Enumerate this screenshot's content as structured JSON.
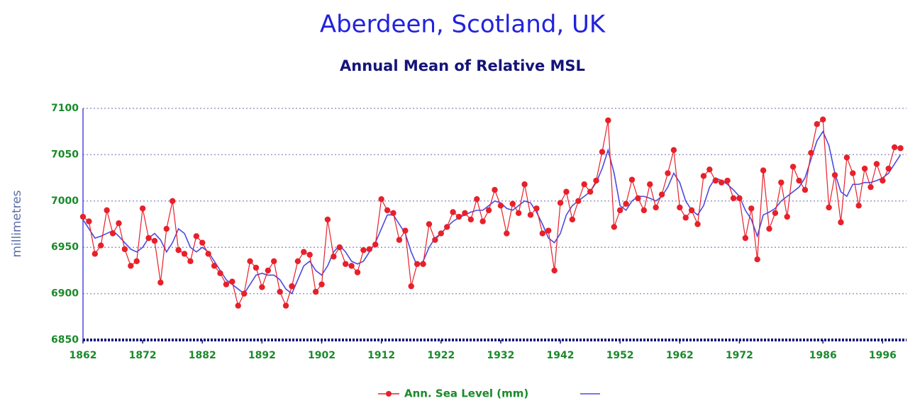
{
  "chart_data": {
    "type": "line",
    "title": "Aberdeen, Scotland, UK",
    "subtitle": "Annual Mean of Relative MSL",
    "y_label": "millimetres",
    "x": [
      1862,
      1863,
      1864,
      1865,
      1866,
      1867,
      1868,
      1869,
      1870,
      1871,
      1872,
      1873,
      1874,
      1875,
      1876,
      1877,
      1878,
      1879,
      1880,
      1881,
      1882,
      1883,
      1884,
      1885,
      1886,
      1887,
      1888,
      1889,
      1890,
      1891,
      1892,
      1893,
      1894,
      1895,
      1896,
      1897,
      1898,
      1899,
      1900,
      1901,
      1902,
      1903,
      1904,
      1905,
      1906,
      1907,
      1908,
      1909,
      1910,
      1911,
      1912,
      1913,
      1914,
      1915,
      1916,
      1917,
      1918,
      1919,
      1920,
      1921,
      1922,
      1923,
      1924,
      1925,
      1926,
      1927,
      1928,
      1929,
      1930,
      1931,
      1932,
      1933,
      1934,
      1935,
      1936,
      1937,
      1938,
      1939,
      1940,
      1941,
      1942,
      1943,
      1944,
      1945,
      1946,
      1947,
      1948,
      1949,
      1950,
      1951,
      1952,
      1953,
      1954,
      1955,
      1956,
      1957,
      1958,
      1959,
      1960,
      1961,
      1962,
      1963,
      1964,
      1965,
      1966,
      1967,
      1968,
      1969,
      1970,
      1971,
      1972,
      1973,
      1974,
      1975,
      1976,
      1977,
      1978,
      1979,
      1980,
      1981,
      1982,
      1983,
      1984,
      1985,
      1986,
      1987,
      1988,
      1989,
      1990,
      1991,
      1992,
      1993,
      1994,
      1995,
      1996,
      1997,
      1998,
      1999
    ],
    "series": [
      {
        "name": "Ann. Sea Level (mm)",
        "color": "#e8202a",
        "values": [
          6983,
          6978,
          6943,
          6952,
          6990,
          6965,
          6976,
          6948,
          6930,
          6935,
          6992,
          6960,
          6957,
          6912,
          6970,
          7000,
          6947,
          6943,
          6935,
          6962,
          6955,
          6943,
          6930,
          6922,
          6910,
          6913,
          6887,
          6900,
          6935,
          6928,
          6907,
          6925,
          6935,
          6902,
          6887,
          6908,
          6935,
          6945,
          6942,
          6902,
          6910,
          6980,
          6940,
          6950,
          6932,
          6930,
          6923,
          6947,
          6948,
          6953,
          7002,
          6990,
          6987,
          6958,
          6968,
          6908,
          6932,
          6932,
          6975,
          6958,
          6965,
          6972,
          6988,
          6983,
          6987,
          6980,
          7002,
          6978,
          6990,
          7012,
          6995,
          6965,
          6997,
          6987,
          7018,
          6985,
          6992,
          6965,
          6968,
          6925,
          6998,
          7010,
          6980,
          7000,
          7018,
          7010,
          7022,
          7053,
          7087,
          6972,
          6990,
          6997,
          7023,
          7003,
          6990,
          7018,
          6993,
          7007,
          7030,
          7055,
          6993,
          6982,
          6990,
          6975,
          7027,
          7034,
          7022,
          7020,
          7022,
          7003,
          7003,
          6960,
          6992,
          6937,
          7033,
          6970,
          6987,
          7020,
          6983,
          7037,
          7022,
          7012,
          7052,
          7083,
          7088,
          6993,
          7028,
          6977,
          7047,
          7030,
          6995,
          7035,
          7015,
          7040,
          7022,
          7035,
          7058,
          7057
        ]
      },
      {
        "color": "#4a4ae0",
        "values": [
          6980,
          6970,
          6960,
          6962,
          6965,
          6968,
          6962,
          6955,
          6948,
          6945,
          6950,
          6960,
          6965,
          6958,
          6945,
          6955,
          6970,
          6965,
          6950,
          6945,
          6950,
          6945,
          6935,
          6925,
          6915,
          6910,
          6905,
          6900,
          6910,
          6920,
          6922,
          6920,
          6920,
          6915,
          6905,
          6900,
          6915,
          6930,
          6935,
          6925,
          6920,
          6930,
          6945,
          6952,
          6945,
          6935,
          6932,
          6935,
          6945,
          6955,
          6970,
          6985,
          6985,
          6975,
          6965,
          6945,
          6930,
          6935,
          6950,
          6960,
          6965,
          6972,
          6978,
          6982,
          6985,
          6988,
          6990,
          6990,
          6995,
          7000,
          6998,
          6992,
          6990,
          6995,
          7000,
          6998,
          6988,
          6975,
          6960,
          6955,
          6965,
          6985,
          6995,
          7000,
          7005,
          7010,
          7020,
          7035,
          7055,
          7030,
          6995,
          6990,
          7000,
          7005,
          7005,
          7003,
          7000,
          7005,
          7015,
          7030,
          7020,
          7000,
          6990,
          6985,
          6995,
          7015,
          7025,
          7022,
          7018,
          7012,
          7005,
          6990,
          6980,
          6962,
          6985,
          6988,
          6992,
          7000,
          7005,
          7010,
          7015,
          7025,
          7045,
          7065,
          7075,
          7060,
          7030,
          7010,
          7005,
          7018,
          7018,
          7020,
          7020,
          7022,
          7025,
          7030,
          7040,
          7050
        ]
      }
    ],
    "xlim": [
      1862,
      2000
    ],
    "xticks": [
      1862,
      1872,
      1882,
      1892,
      1902,
      1912,
      1922,
      1932,
      1942,
      1952,
      1962,
      1972,
      1986,
      1996
    ],
    "ylim": [
      6850,
      7100
    ],
    "yticks": [
      6850,
      6900,
      6950,
      7000,
      7050,
      7100
    ],
    "grid": true
  }
}
